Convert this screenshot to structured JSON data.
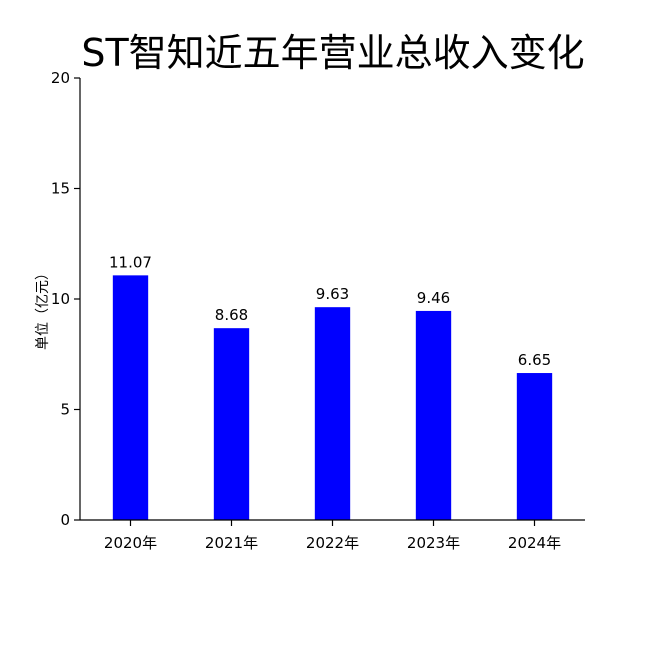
{
  "chart_data": {
    "type": "bar",
    "title": "ST智知近五年营业总收入变化",
    "xlabel": "",
    "ylabel": "单位（亿元）",
    "categories": [
      "2020年",
      "2021年",
      "2022年",
      "2023年",
      "2024年"
    ],
    "values": [
      11.07,
      8.68,
      9.63,
      9.46,
      6.65
    ],
    "value_labels": [
      "11.07",
      "8.68",
      "9.63",
      "9.46",
      "6.65"
    ],
    "ylim": [
      0,
      20
    ],
    "yticks": [
      "0",
      "5",
      "10",
      "15",
      "20"
    ],
    "bar_color": "#0000ff",
    "grid": false,
    "legend": "none"
  }
}
